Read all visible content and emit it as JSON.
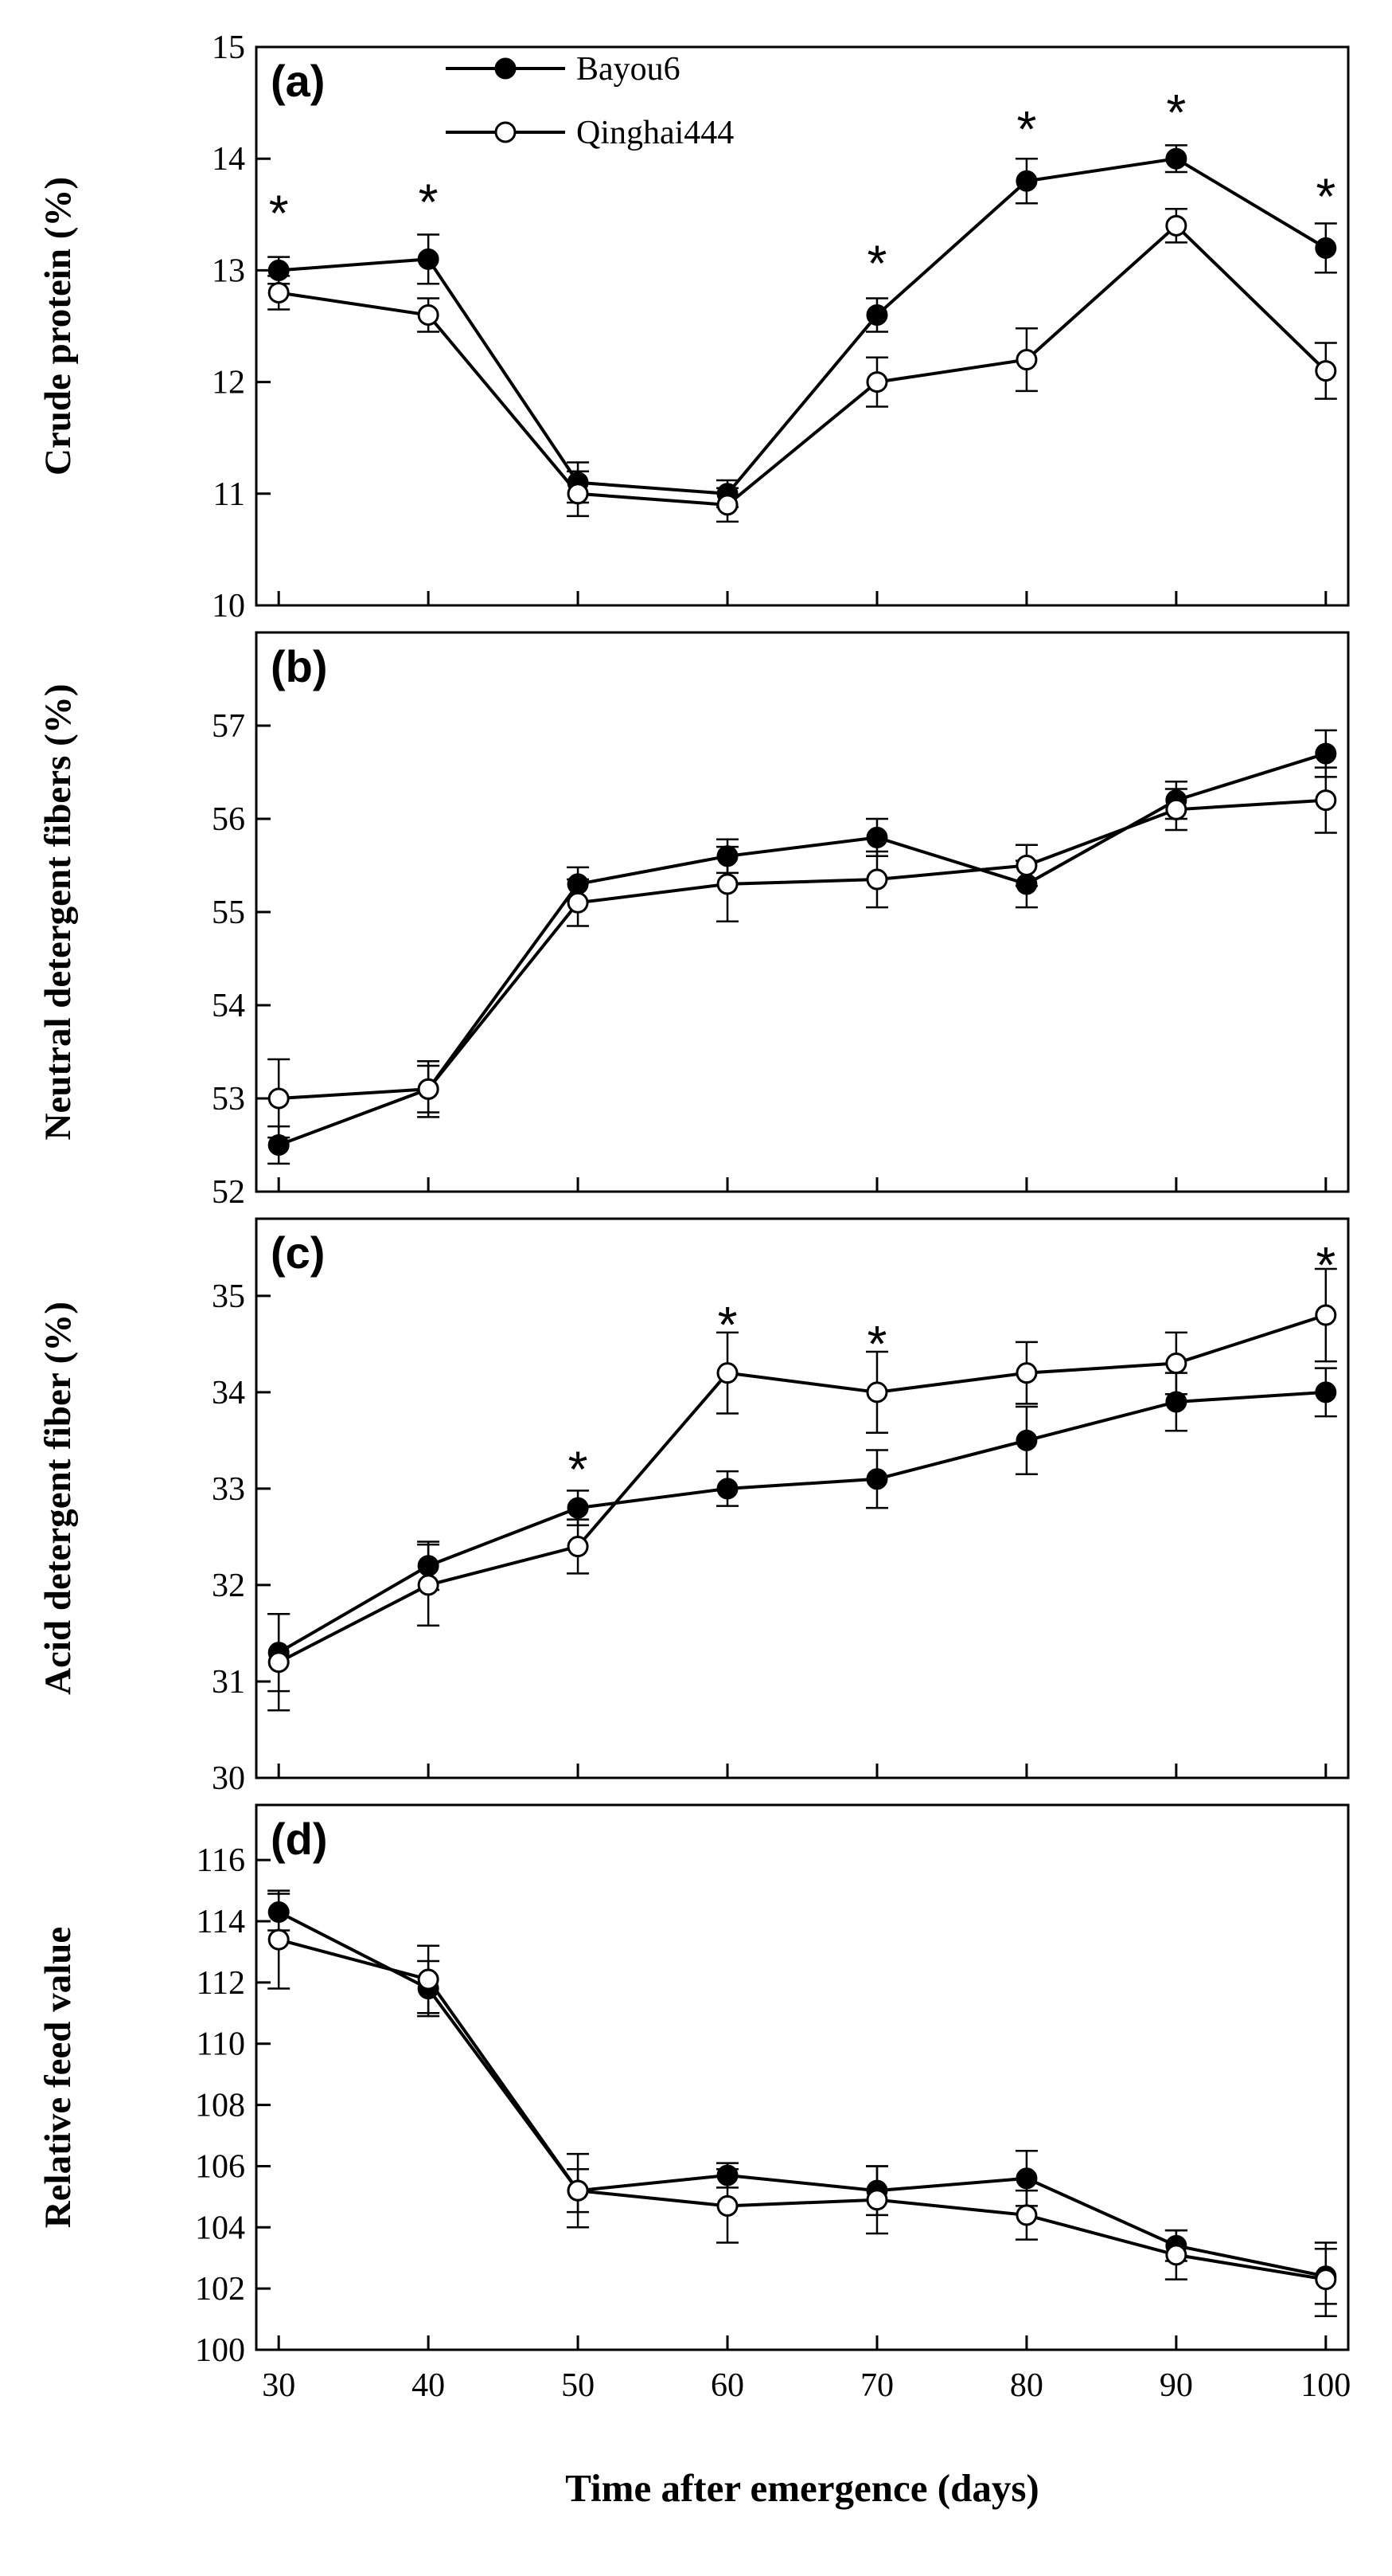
{
  "figure": {
    "xlabel": "Time after emergence (days)",
    "x_ticks": [
      30,
      40,
      50,
      60,
      70,
      80,
      90,
      100
    ],
    "xlim": [
      28.5,
      101.5
    ],
    "legend": {
      "entries": [
        {
          "name": "Bayou6",
          "marker": "filled-circle"
        },
        {
          "name": "Qinghai444",
          "marker": "open-circle"
        }
      ],
      "placement": "top-center of panel (a)"
    }
  },
  "chart_data": [
    {
      "type": "line",
      "panel_label": "(a)",
      "ylabel": "Crude protein (%)",
      "ylim": [
        10,
        15
      ],
      "y_ticks": [
        10,
        11,
        12,
        13,
        14,
        15
      ],
      "x": [
        30,
        40,
        50,
        60,
        70,
        80,
        90,
        100
      ],
      "series": [
        {
          "name": "Bayou6",
          "marker": "filled",
          "values": [
            13.0,
            13.1,
            11.1,
            11.0,
            12.6,
            13.8,
            14.0,
            13.2
          ],
          "errors": [
            0.12,
            0.22,
            0.18,
            0.12,
            0.15,
            0.2,
            0.12,
            0.22
          ]
        },
        {
          "name": "Qinghai444",
          "marker": "open",
          "values": [
            12.8,
            12.6,
            11.0,
            10.9,
            12.0,
            12.2,
            13.4,
            12.1
          ],
          "errors": [
            0.15,
            0.15,
            0.2,
            0.15,
            0.22,
            0.28,
            0.15,
            0.25
          ]
        }
      ],
      "significance_marks": [
        {
          "x": 30,
          "y": 13.6,
          "text": "*"
        },
        {
          "x": 40,
          "y": 13.7,
          "text": "*"
        },
        {
          "x": 70,
          "y": 13.15,
          "text": "*"
        },
        {
          "x": 80,
          "y": 14.35,
          "text": "*"
        },
        {
          "x": 90,
          "y": 14.5,
          "text": "*"
        },
        {
          "x": 100,
          "y": 13.75,
          "text": "*"
        }
      ]
    },
    {
      "type": "line",
      "panel_label": "(b)",
      "ylabel": "Neutral detergent fibers (%)",
      "ylim": [
        52,
        58
      ],
      "y_ticks": [
        52,
        53,
        54,
        55,
        56,
        57
      ],
      "x": [
        30,
        40,
        50,
        60,
        70,
        80,
        90,
        100
      ],
      "series": [
        {
          "name": "Bayou6",
          "marker": "filled",
          "values": [
            52.5,
            53.1,
            55.3,
            55.6,
            55.8,
            55.3,
            56.2,
            56.7
          ],
          "errors": [
            0.2,
            0.25,
            0.18,
            0.18,
            0.2,
            0.25,
            0.2,
            0.25
          ]
        },
        {
          "name": "Qinghai444",
          "marker": "open",
          "values": [
            53.0,
            53.1,
            55.1,
            55.3,
            55.35,
            55.5,
            56.1,
            56.2
          ],
          "errors": [
            0.42,
            0.3,
            0.25,
            0.4,
            0.3,
            0.22,
            0.22,
            0.35
          ]
        }
      ],
      "significance_marks": []
    },
    {
      "type": "line",
      "panel_label": "(c)",
      "ylabel": "Acid detergent fiber (%)",
      "ylim": [
        30,
        35.8
      ],
      "y_ticks": [
        30,
        31,
        32,
        33,
        34,
        35
      ],
      "x": [
        30,
        40,
        50,
        60,
        70,
        80,
        90,
        100
      ],
      "series": [
        {
          "name": "Bayou6",
          "marker": "filled",
          "values": [
            31.3,
            32.2,
            32.8,
            33.0,
            33.1,
            33.5,
            33.9,
            34.0
          ],
          "errors": [
            0.4,
            0.25,
            0.18,
            0.18,
            0.3,
            0.35,
            0.3,
            0.25
          ]
        },
        {
          "name": "Qinghai444",
          "marker": "open",
          "values": [
            31.2,
            32.0,
            32.4,
            34.2,
            34.0,
            34.2,
            34.3,
            34.8
          ],
          "errors": [
            0.5,
            0.42,
            0.28,
            0.42,
            0.42,
            0.32,
            0.32,
            0.48
          ]
        }
      ],
      "significance_marks": [
        {
          "x": 50,
          "y": 33.3,
          "text": "*"
        },
        {
          "x": 60,
          "y": 34.8,
          "text": "*"
        },
        {
          "x": 70,
          "y": 34.6,
          "text": "*"
        },
        {
          "x": 100,
          "y": 35.42,
          "text": "*"
        }
      ]
    },
    {
      "type": "line",
      "panel_label": "(d)",
      "ylabel": "Relative feed value",
      "ylim": [
        100,
        117.8
      ],
      "y_ticks": [
        100,
        102,
        104,
        106,
        108,
        110,
        112,
        114,
        116
      ],
      "x": [
        30,
        40,
        50,
        60,
        70,
        80,
        90,
        100
      ],
      "series": [
        {
          "name": "Bayou6",
          "marker": "filled",
          "values": [
            114.3,
            111.8,
            105.2,
            105.7,
            105.2,
            105.6,
            103.4,
            102.4
          ],
          "errors": [
            0.6,
            0.9,
            0.7,
            0.4,
            0.8,
            0.9,
            0.5,
            0.9
          ]
        },
        {
          "name": "Qinghai444",
          "marker": "open",
          "values": [
            113.4,
            112.1,
            105.2,
            104.7,
            104.9,
            104.4,
            103.1,
            102.3
          ],
          "errors": [
            1.6,
            1.1,
            1.2,
            1.2,
            1.1,
            0.8,
            0.8,
            1.2
          ]
        }
      ],
      "significance_marks": []
    }
  ]
}
